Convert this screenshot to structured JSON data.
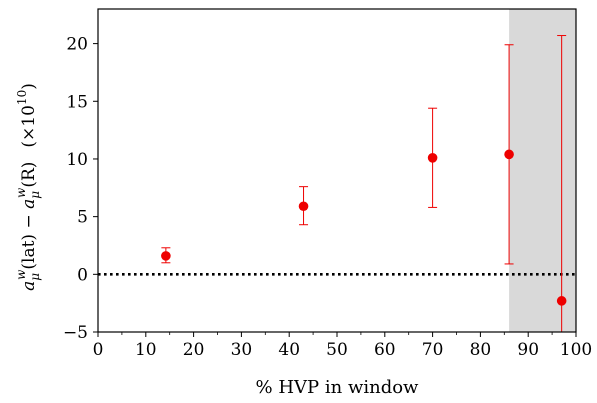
{
  "chart_data": {
    "type": "scatter",
    "xlabel": "% HVP in window",
    "ylabel": "a_μ^w(lat) − a_μ^w(R)",
    "ylabel_parts": {
      "base1": "a",
      "sub1": "μ",
      "sup1": "w",
      "mid1": "(lat) − ",
      "base2": "a",
      "sub2": "μ",
      "sup2": "w",
      "mid2": "(R)",
      "scale": "(×10",
      "scale_exp": "10",
      "scale_close": ")"
    },
    "xlim": [
      0,
      100
    ],
    "ylim": [
      -5,
      23
    ],
    "xticks": [
      0,
      10,
      20,
      30,
      40,
      50,
      60,
      70,
      80,
      90,
      100
    ],
    "yticks": [
      -5,
      0,
      5,
      10,
      15,
      20
    ],
    "grid": false,
    "reference_line": {
      "y": 0,
      "style": "dotted",
      "color": "#000000"
    },
    "shaded_region": {
      "x": [
        86,
        100
      ],
      "color": "#d9d9d9"
    },
    "marker_color": "#ee0000",
    "points": [
      {
        "x": 14.2,
        "y": 1.6,
        "yerr_low": 1.0,
        "yerr_high": 2.3
      },
      {
        "x": 43.0,
        "y": 5.9,
        "yerr_low": 4.3,
        "yerr_high": 7.6
      },
      {
        "x": 70.0,
        "y": 10.1,
        "yerr_low": 5.8,
        "yerr_high": 14.4
      },
      {
        "x": 86.0,
        "y": 10.4,
        "yerr_low": 0.9,
        "yerr_high": 19.9
      },
      {
        "x": 97.0,
        "y": -2.3,
        "yerr_low": -5.0,
        "yerr_high": 20.7
      }
    ]
  }
}
